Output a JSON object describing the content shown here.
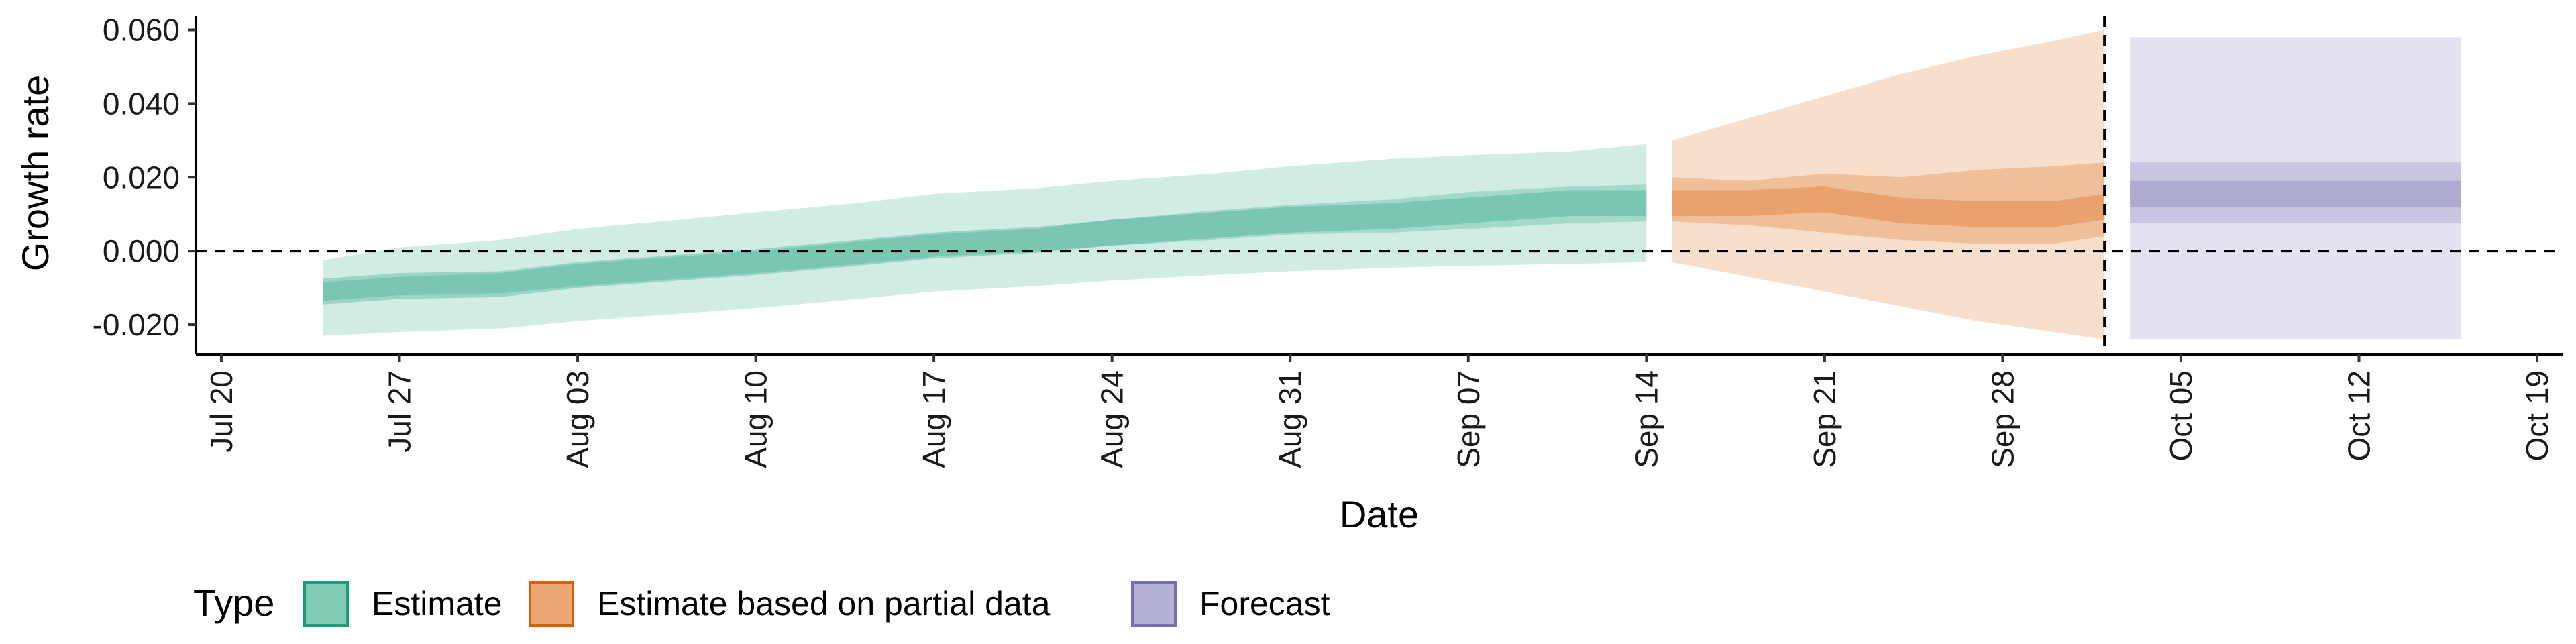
{
  "chart_data": {
    "type": "area",
    "title": "",
    "xlabel": "Date",
    "ylabel": "Growth rate",
    "ylim": [
      -0.028,
      0.063
    ],
    "xlim": [
      "2020-07-19",
      "2020-10-20"
    ],
    "yticks": [
      -0.02,
      0.0,
      0.02,
      0.04,
      0.06
    ],
    "ytick_labels": [
      "-0.020",
      "0.000",
      "0.020",
      "0.040",
      "0.060"
    ],
    "xticks": [
      "2020-07-20",
      "2020-07-27",
      "2020-08-03",
      "2020-08-10",
      "2020-08-17",
      "2020-08-24",
      "2020-08-31",
      "2020-09-07",
      "2020-09-14",
      "2020-09-21",
      "2020-09-28",
      "2020-10-05",
      "2020-10-12",
      "2020-10-19"
    ],
    "xtick_labels": [
      "Jul 20",
      "Jul 27",
      "Aug 03",
      "Aug 10",
      "Aug 17",
      "Aug 24",
      "Aug 31",
      "Sep 07",
      "Sep 14",
      "Sep 21",
      "Sep 28",
      "Oct 05",
      "Oct 12",
      "Oct 19"
    ],
    "hline_y": 0.0,
    "vline_x": "2020-10-02",
    "legend": {
      "title": "Type",
      "position": "bottom",
      "entries": [
        "Estimate",
        "Estimate based on partial data",
        "Forecast"
      ]
    },
    "series": [
      {
        "name": "Estimate",
        "color": "#1b9e77",
        "x": [
          "2020-07-24",
          "2020-07-27",
          "2020-07-31",
          "2020-08-03",
          "2020-08-07",
          "2020-08-10",
          "2020-08-14",
          "2020-08-17",
          "2020-08-21",
          "2020-08-24",
          "2020-08-28",
          "2020-08-31",
          "2020-09-04",
          "2020-09-07",
          "2020-09-11",
          "2020-09-14"
        ],
        "median": [
          -0.011,
          -0.0095,
          -0.009,
          -0.0065,
          -0.0045,
          -0.003,
          -0.0005,
          0.0015,
          0.003,
          0.005,
          0.007,
          0.0085,
          0.0095,
          0.011,
          0.013,
          0.013
        ],
        "lower_50": [
          -0.0135,
          -0.012,
          -0.0115,
          -0.0095,
          -0.0075,
          -0.006,
          -0.0035,
          -0.0015,
          0.0,
          0.0015,
          0.003,
          0.0045,
          0.005,
          0.006,
          0.0075,
          0.008
        ],
        "upper_50": [
          -0.0085,
          -0.007,
          -0.006,
          -0.0035,
          -0.0015,
          0.0,
          0.0025,
          0.0045,
          0.006,
          0.0085,
          0.011,
          0.0125,
          0.014,
          0.016,
          0.0175,
          0.018
        ],
        "lower_90": [
          -0.023,
          -0.022,
          -0.021,
          -0.019,
          -0.017,
          -0.0155,
          -0.013,
          -0.011,
          -0.0095,
          -0.008,
          -0.0065,
          -0.0055,
          -0.0045,
          -0.004,
          -0.0035,
          -0.003
        ],
        "upper_90": [
          -0.0025,
          0.001,
          0.003,
          0.006,
          0.0085,
          0.0105,
          0.013,
          0.0155,
          0.017,
          0.019,
          0.021,
          0.023,
          0.025,
          0.026,
          0.027,
          0.029
        ]
      },
      {
        "name": "Estimate based on partial data",
        "color": "#d95f02",
        "x": [
          "2020-09-15",
          "2020-09-18",
          "2020-09-21",
          "2020-09-24",
          "2020-09-27",
          "2020-09-30",
          "2020-10-02"
        ],
        "median": [
          0.013,
          0.013,
          0.014,
          0.011,
          0.01,
          0.01,
          0.012
        ],
        "lower_50": [
          0.008,
          0.007,
          0.005,
          0.003,
          0.002,
          0.002,
          0.004
        ],
        "upper_50": [
          0.02,
          0.019,
          0.021,
          0.02,
          0.022,
          0.023,
          0.024
        ],
        "lower_90": [
          -0.003,
          -0.007,
          -0.011,
          -0.015,
          -0.019,
          -0.022,
          -0.024
        ],
        "upper_90": [
          0.03,
          0.036,
          0.042,
          0.048,
          0.053,
          0.057,
          0.06
        ]
      },
      {
        "name": "Forecast",
        "color": "#7570b3",
        "x": [
          "2020-10-03",
          "2020-10-16"
        ],
        "median": [
          0.0155,
          0.0155
        ],
        "lower_50": [
          0.0075,
          0.0075
        ],
        "upper_50": [
          0.024,
          0.024
        ],
        "lower_90": [
          -0.024,
          -0.024
        ],
        "upper_90": [
          0.058,
          0.058
        ]
      }
    ]
  }
}
